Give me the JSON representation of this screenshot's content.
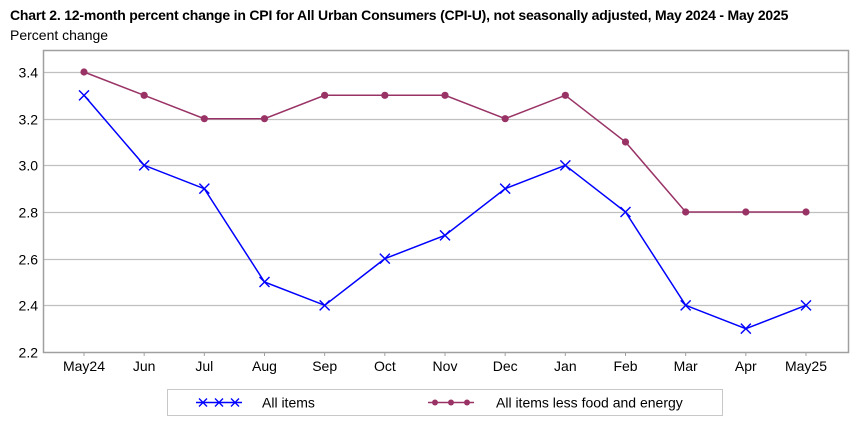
{
  "chart_data": {
    "type": "line",
    "title": "Chart 2. 12-month percent change in CPI for All Urban Consumers (CPI-U), not seasonally adjusted, May 2024 - May 2025",
    "ylabel": "Percent change",
    "xlabel": "",
    "categories": [
      "May24",
      "Jun",
      "Jul",
      "Aug",
      "Sep",
      "Oct",
      "Nov",
      "Dec",
      "Jan",
      "Feb",
      "Mar",
      "Apr",
      "May25"
    ],
    "ylim": [
      2.2,
      3.45
    ],
    "yticks": [
      "2.2",
      "2.4",
      "2.6",
      "2.8",
      "3.0",
      "3.2",
      "3.4"
    ],
    "ytick_values": [
      2.2,
      2.4,
      2.6,
      2.8,
      3.0,
      3.2,
      3.4
    ],
    "grid": true,
    "legend_position": "bottom",
    "series": [
      {
        "name": "All items",
        "color": "#0000ff",
        "marker": "x",
        "values": [
          3.3,
          3.0,
          2.9,
          2.5,
          2.4,
          2.6,
          2.7,
          2.9,
          3.0,
          2.8,
          2.4,
          2.3,
          2.4
        ]
      },
      {
        "name": "All items less food and energy",
        "color": "#993366",
        "marker": "dot",
        "values": [
          3.4,
          3.3,
          3.2,
          3.2,
          3.3,
          3.3,
          3.3,
          3.2,
          3.3,
          3.1,
          2.8,
          2.8,
          2.8
        ]
      }
    ]
  }
}
